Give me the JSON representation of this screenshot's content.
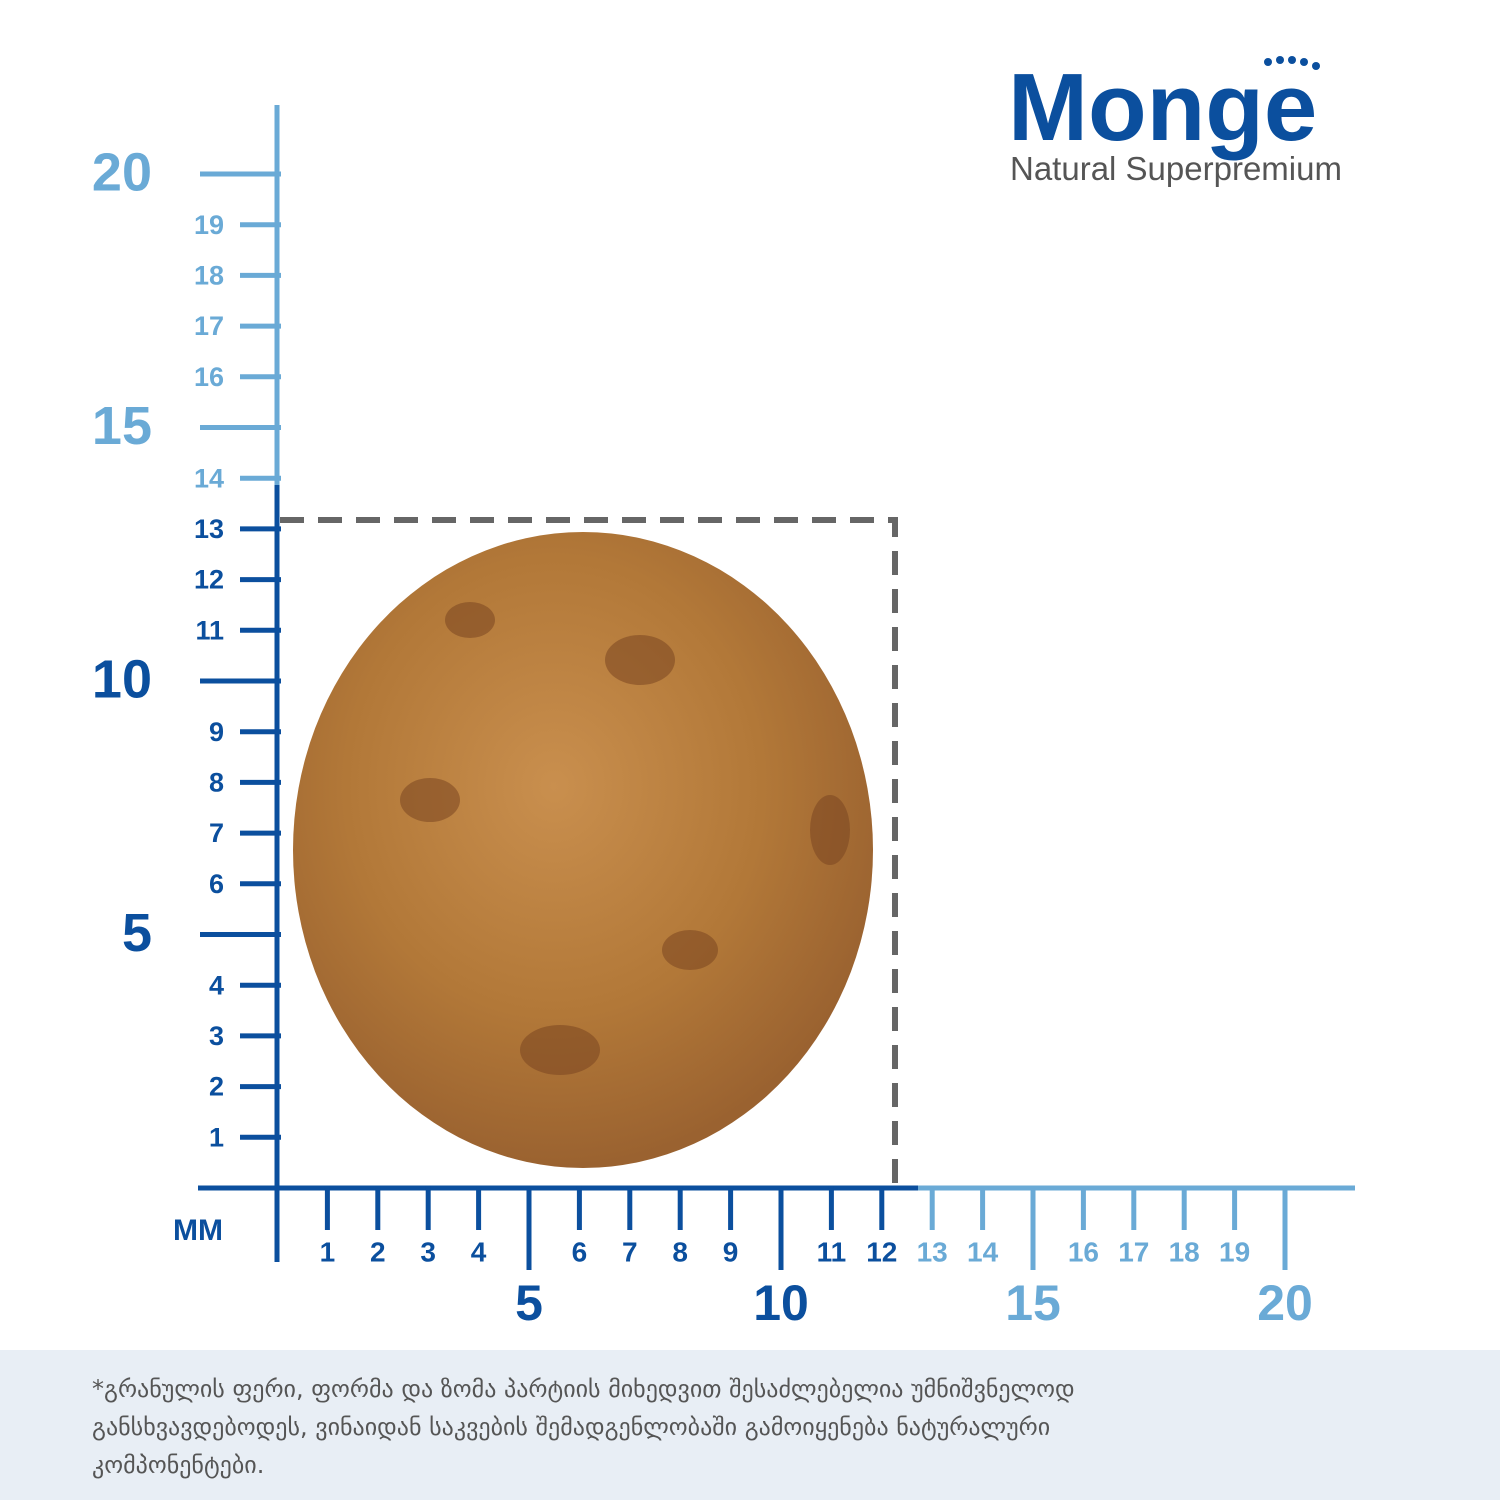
{
  "logo": {
    "brand": "Monge",
    "tagline": "Natural Superpremium"
  },
  "ruler": {
    "unit": "MM",
    "y_labels": [
      1,
      2,
      3,
      4,
      5,
      6,
      7,
      8,
      9,
      10,
      11,
      12,
      13,
      14,
      15,
      16,
      17,
      18,
      19,
      20
    ],
    "x_labels": [
      1,
      2,
      3,
      4,
      5,
      6,
      7,
      8,
      9,
      10,
      11,
      12,
      13,
      14,
      15,
      16,
      17,
      18,
      19,
      20
    ]
  },
  "footnote": [
    "*გრანულის ფერი, ფორმა და ზომა პარტიის მიხედვით შესაძლებელია უმნიშვნელოდ",
    "განსხვავდებოდეს,  ვინაიდან საკვების შემადგენლობაში გამოიყენება ნატურალური",
    "კომპონენტები."
  ]
}
